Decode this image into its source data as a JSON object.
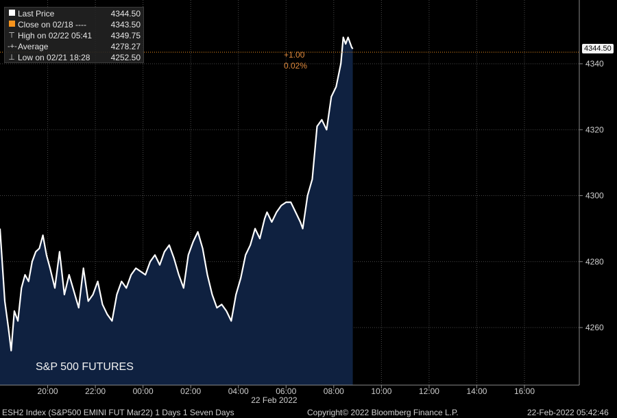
{
  "legend": {
    "last_price_label": "Last Price",
    "last_price_value": "4344.50",
    "close_label": "Close on 02/18 ----",
    "close_value": "4343.50",
    "high_label": "High on 02/22 05:41",
    "high_value": "4349.75",
    "average_label": "Average",
    "average_value": "4278.27",
    "low_label": "Low on 02/21 18:28",
    "low_value": "4252.50"
  },
  "annotations": {
    "price_tag": "4344.50",
    "change_abs": "+1.00",
    "change_pct": "0.02%",
    "series_title": "S&P 500 FUTURES",
    "date_label": "22 Feb 2022"
  },
  "footer": {
    "left": "ESH2 Index (S&P500 EMINI FUT  Mar22) 1 Days 1 Seven Days",
    "center": "Copyright© 2022 Bloomberg Finance L.P.",
    "right": "22-Feb-2022 05:42:46"
  },
  "colors": {
    "line": "#ffffff",
    "fill": "#0f2140",
    "grid": "#4a4a4a",
    "close_line": "#f7941d"
  },
  "chart_data": {
    "type": "area",
    "title": "",
    "xlabel": "",
    "ylabel": "",
    "x_ticks": [
      "20:00",
      "22:00",
      "00:00",
      "02:00",
      "04:00",
      "06:00",
      "08:00",
      "10:00",
      "12:00",
      "14:00",
      "16:00"
    ],
    "x_range_hours": [
      18.0,
      42.0
    ],
    "y_ticks": [
      4260,
      4280,
      4300,
      4320,
      4340
    ],
    "ylim": [
      4240,
      4362
    ],
    "grid": true,
    "close_reference": 4343.5,
    "series": [
      {
        "x": [
          18.0,
          18.2,
          18.35,
          18.47,
          18.6,
          18.75,
          18.9,
          19.05,
          19.2,
          19.35,
          19.5,
          19.65,
          19.8,
          19.95,
          20.1,
          20.3,
          20.5,
          20.7,
          20.9,
          21.1,
          21.3,
          21.5,
          21.7,
          21.9,
          22.1,
          22.3,
          22.5,
          22.7,
          22.9,
          23.1,
          23.3,
          23.5,
          23.7,
          23.9,
          24.1,
          24.3,
          24.5,
          24.7,
          24.9,
          25.1,
          25.3,
          25.5,
          25.7,
          25.9,
          26.1,
          26.3,
          26.5,
          26.7,
          26.9,
          27.1,
          27.3,
          27.5,
          27.7,
          27.9,
          28.1,
          28.3,
          28.5,
          28.7,
          28.9,
          29.1,
          29.2,
          29.4,
          29.6,
          29.8,
          30.0,
          30.2,
          30.4,
          30.6,
          30.7,
          30.9,
          31.1,
          31.3,
          31.5,
          31.7,
          31.9,
          32.1,
          32.3,
          32.4,
          32.5,
          32.6,
          32.7,
          32.75,
          32.8
        ],
        "y": [
          4290,
          4268,
          4260,
          4253,
          4265,
          4262,
          4272,
          4276,
          4274,
          4280,
          4283,
          4284,
          4288,
          4282,
          4278,
          4272,
          4283,
          4270,
          4276,
          4271,
          4266,
          4278,
          4268,
          4270,
          4274,
          4267,
          4264,
          4262,
          4270,
          4274,
          4272,
          4276,
          4278,
          4277,
          4276,
          4280,
          4282,
          4279,
          4283,
          4285,
          4281,
          4276,
          4272,
          4282,
          4286,
          4289,
          4284,
          4276,
          4270,
          4266,
          4267,
          4265,
          4262,
          4270,
          4275,
          4282,
          4285,
          4290,
          4287,
          4293,
          4295,
          4292,
          4295,
          4297,
          4298,
          4298,
          4295,
          4292,
          4290,
          4300,
          4305,
          4321,
          4323,
          4320,
          4330,
          4333,
          4340,
          4348,
          4346,
          4348,
          4346,
          4345,
          4344.5
        ]
      }
    ]
  }
}
